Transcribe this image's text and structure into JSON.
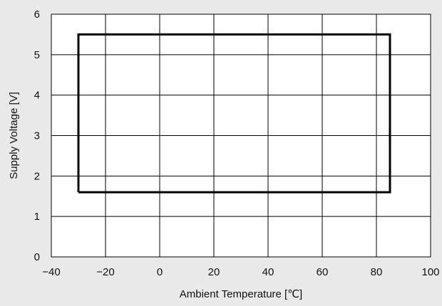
{
  "chart_data": {
    "type": "line",
    "title": "",
    "xlabel": "Ambient Temperature [℃]",
    "ylabel": "Supply Voltage [V]",
    "xlim": [
      -40,
      100
    ],
    "ylim": [
      0,
      6
    ],
    "x_ticks": [
      "−40",
      "−20",
      "0",
      "20",
      "40",
      "60",
      "80",
      "100"
    ],
    "y_ticks": [
      "0",
      "1",
      "2",
      "3",
      "4",
      "5",
      "6"
    ],
    "grid": true,
    "legend": "none",
    "series": [
      {
        "x": [
          -30,
          85,
          85,
          -30,
          -30
        ],
        "y": [
          1.6,
          1.6,
          5.5,
          5.5,
          1.6
        ],
        "color": "#000000"
      }
    ]
  }
}
